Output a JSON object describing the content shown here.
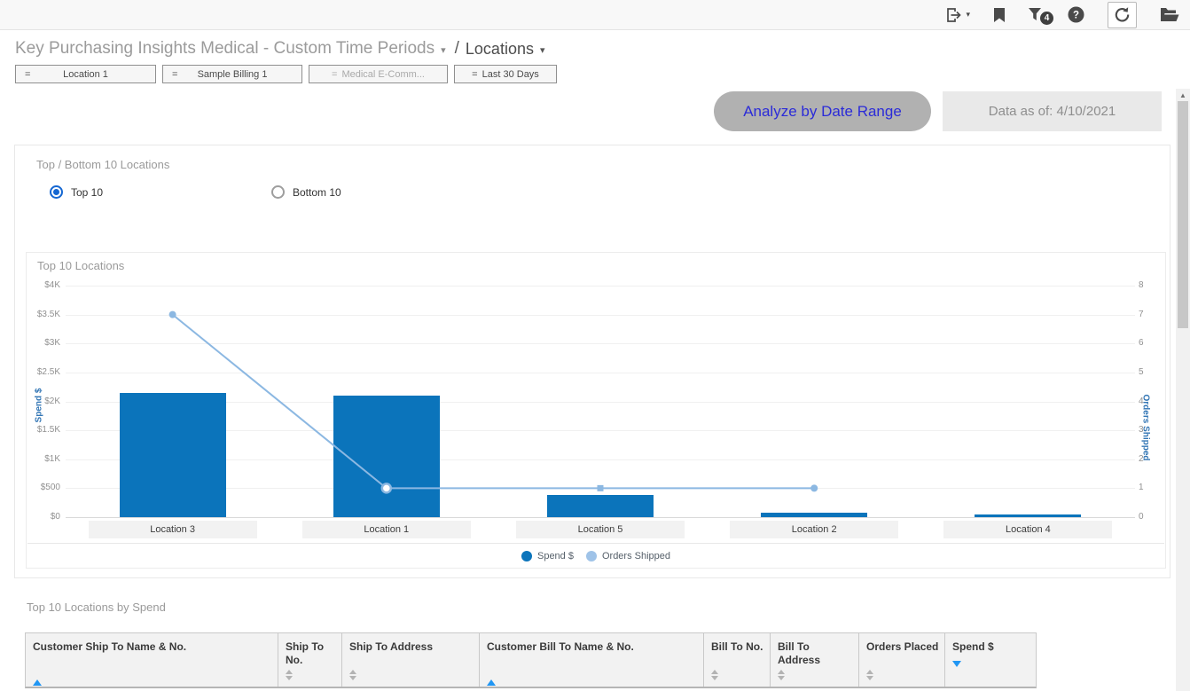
{
  "topbar": {
    "icons": [
      "export-icon",
      "bookmark-icon",
      "filter-icon",
      "help-icon",
      "refresh-icon",
      "folder-icon"
    ],
    "filter_count": "4"
  },
  "breadcrumb": {
    "report_title": "Key Purchasing Insights Medical - Custom Time Periods",
    "separator": "/",
    "page": "Locations"
  },
  "filters": [
    {
      "op": "=",
      "label": "Location 1",
      "eq_left": true,
      "muted": false
    },
    {
      "op": "=",
      "label": "Sample Billing 1",
      "eq_left": true,
      "muted": false
    },
    {
      "op": "=",
      "label": "Medical E-Comm...",
      "eq_left": false,
      "muted": true
    },
    {
      "op": "=",
      "label": "Last 30 Days",
      "eq_left": false,
      "muted": false
    }
  ],
  "actions": {
    "analyze_button": "Analyze by Date Range",
    "data_as_of": "Data as of: 4/10/2021"
  },
  "panel": {
    "title": "Top / Bottom 10 Locations",
    "radios": [
      {
        "label": "Top 10",
        "selected": true
      },
      {
        "label": "Bottom 10",
        "selected": false
      }
    ]
  },
  "chart_data": {
    "type": "bar-line-combo",
    "title": "Top 10 Locations",
    "categories": [
      "Location 3",
      "Location 1",
      "Location 5",
      "Location 2",
      "Location 4"
    ],
    "series": [
      {
        "name": "Spend $",
        "type": "bar",
        "axis": "left",
        "color": "#0b74bb",
        "values": [
          2150,
          2100,
          390,
          70,
          45
        ]
      },
      {
        "name": "Orders Shipped",
        "type": "line",
        "axis": "right",
        "color": "#8cb8e2",
        "values": [
          7,
          1,
          1,
          1,
          null
        ]
      }
    ],
    "left_axis": {
      "label": "Spend $",
      "ticks": [
        "$4K",
        "$3.5K",
        "$3K",
        "$2.5K",
        "$2K",
        "$1.5K",
        "$1K",
        "$500",
        "$0"
      ],
      "min": 0,
      "max": 4000
    },
    "right_axis": {
      "label": "Orders Shipped",
      "ticks": [
        "8",
        "7",
        "6",
        "5",
        "4",
        "3",
        "2",
        "1",
        "0"
      ],
      "min": 0,
      "max": 8
    },
    "legend": [
      {
        "label": "Spend $",
        "color": "#0b74bb"
      },
      {
        "label": "Orders Shipped",
        "color": "#9fc3e8"
      }
    ],
    "grid": true,
    "legend_position": "bottom"
  },
  "table_section": {
    "title": "Top 10 Locations by Spend",
    "columns": [
      {
        "label": "Customer Ship To Name & No.",
        "sort": "asc"
      },
      {
        "label": "Ship To No.",
        "sort": "none"
      },
      {
        "label": "Ship To Address",
        "sort": "none"
      },
      {
        "label": "Customer Bill To Name & No.",
        "sort": "asc"
      },
      {
        "label": "Bill To No.",
        "sort": "none"
      },
      {
        "label": "Bill To Address",
        "sort": "none"
      },
      {
        "label": "Orders Placed",
        "sort": "none"
      },
      {
        "label": "Spend $",
        "sort": "desc"
      }
    ]
  }
}
